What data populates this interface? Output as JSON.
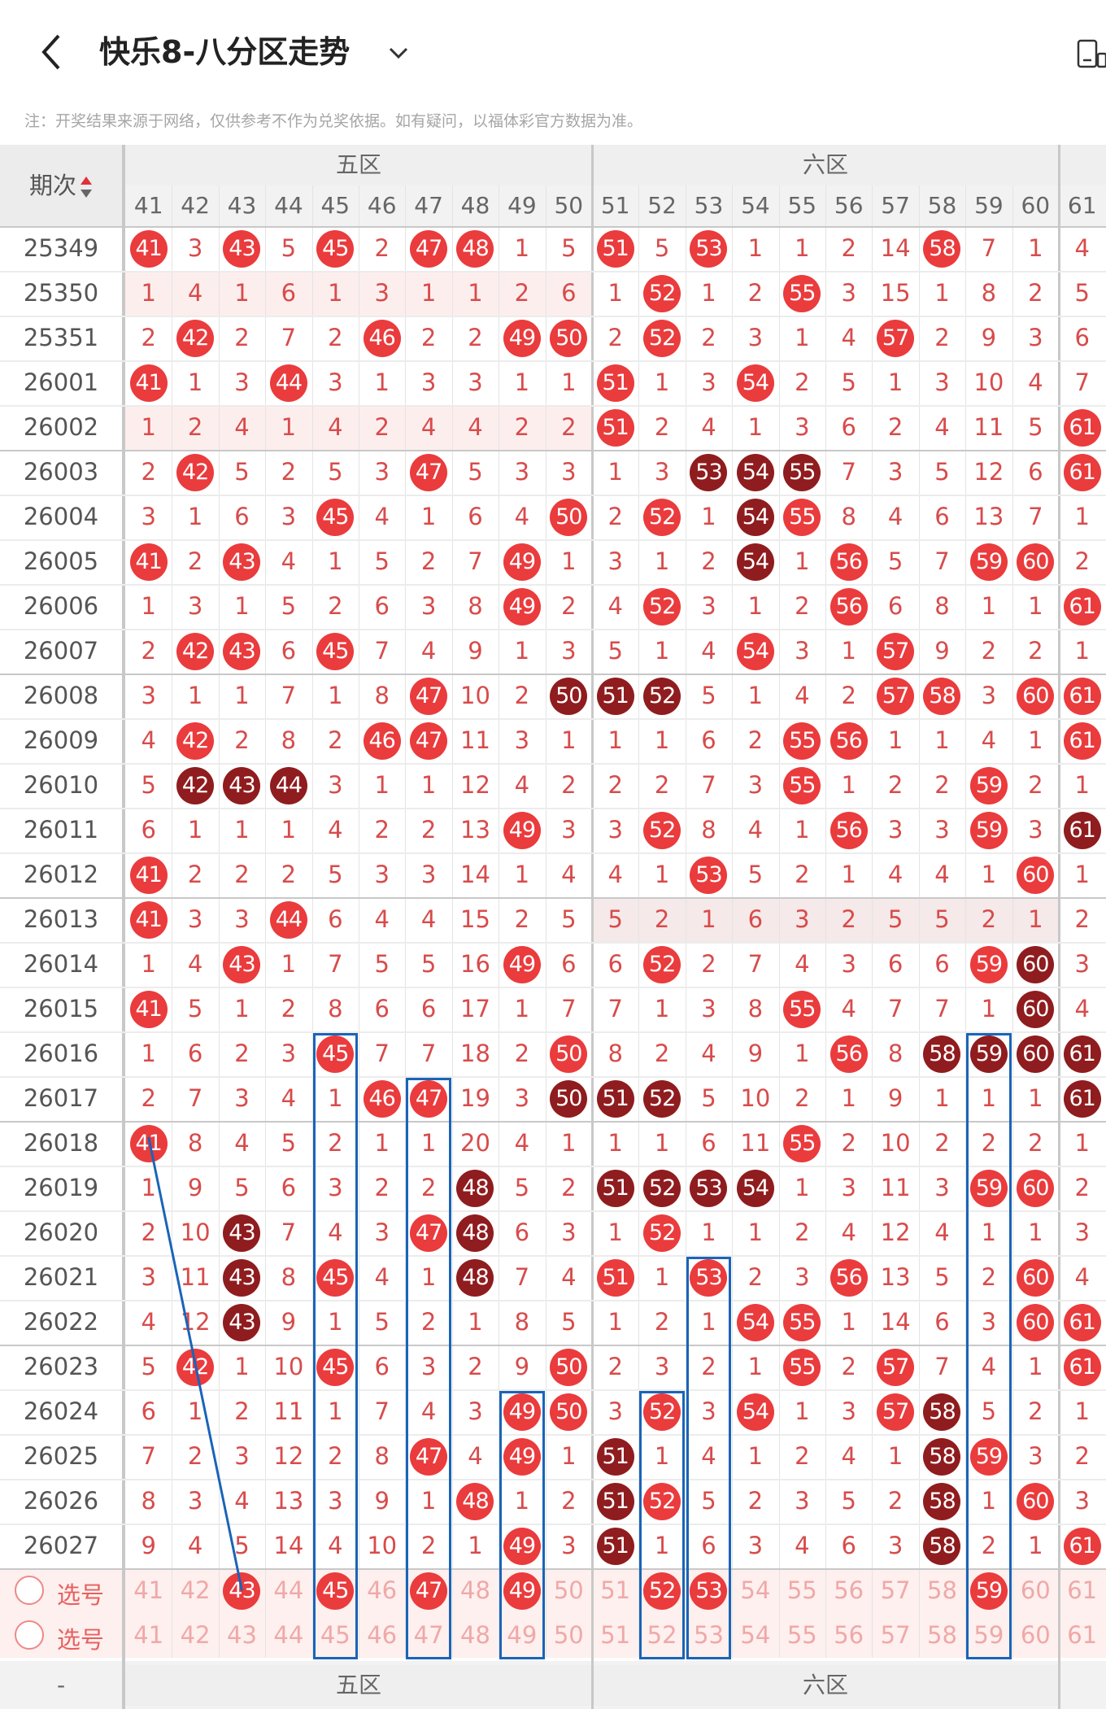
{
  "header": {
    "title": "快乐8-八分区走势"
  },
  "notice": "注：开奖结果来源于网络，仅供参考不作为兑奖依据。如有疑问，以福体彩官方数据为准。",
  "table": {
    "period_header": "期次",
    "zones": [
      "五区",
      "六区"
    ],
    "columns": [
      41,
      42,
      43,
      44,
      45,
      46,
      47,
      48,
      49,
      50,
      51,
      52,
      53,
      54,
      55,
      56,
      57,
      58,
      59,
      60,
      61
    ],
    "rows": [
      {
        "period": "25349",
        "cells": [
          "H41",
          "3",
          "H43",
          "5",
          "H45",
          "2",
          "H47",
          "H48",
          "1",
          "5",
          "H51",
          "5",
          "H53",
          "1",
          "1",
          "2",
          "14",
          "H58",
          "7",
          "1",
          "4"
        ]
      },
      {
        "period": "25350",
        "cells": [
          "1",
          "4",
          "1",
          "6",
          "1",
          "3",
          "1",
          "1",
          "2",
          "6",
          "1",
          "H52",
          "1",
          "2",
          "H55",
          "3",
          "15",
          "1",
          "8",
          "2",
          "5"
        ]
      },
      {
        "period": "25351",
        "cells": [
          "2",
          "H42",
          "2",
          "7",
          "2",
          "H46",
          "2",
          "2",
          "H49",
          "H50",
          "2",
          "H52",
          "2",
          "3",
          "1",
          "4",
          "H57",
          "2",
          "9",
          "3",
          "6"
        ]
      },
      {
        "period": "26001",
        "cells": [
          "H41",
          "1",
          "3",
          "H44",
          "3",
          "1",
          "3",
          "3",
          "1",
          "1",
          "H51",
          "1",
          "3",
          "H54",
          "2",
          "5",
          "1",
          "3",
          "10",
          "4",
          "7"
        ]
      },
      {
        "period": "26002",
        "cells": [
          "1",
          "2",
          "4",
          "1",
          "4",
          "2",
          "4",
          "4",
          "2",
          "2",
          "H51",
          "2",
          "4",
          "1",
          "3",
          "6",
          "2",
          "4",
          "11",
          "5",
          "H61"
        ]
      },
      {
        "period": "26003",
        "cells": [
          "2",
          "H42",
          "5",
          "2",
          "5",
          "3",
          "H47",
          "5",
          "3",
          "3",
          "1",
          "3",
          "D53",
          "D54",
          "D55",
          "7",
          "3",
          "5",
          "12",
          "6",
          "H61"
        ]
      },
      {
        "period": "26004",
        "cells": [
          "3",
          "1",
          "6",
          "3",
          "H45",
          "4",
          "1",
          "6",
          "4",
          "H50",
          "2",
          "H52",
          "1",
          "D54",
          "H55",
          "8",
          "4",
          "6",
          "13",
          "7",
          "1"
        ]
      },
      {
        "period": "26005",
        "cells": [
          "H41",
          "2",
          "H43",
          "4",
          "1",
          "5",
          "2",
          "7",
          "H49",
          "1",
          "3",
          "1",
          "2",
          "D54",
          "1",
          "H56",
          "5",
          "7",
          "H59",
          "H60",
          "2"
        ]
      },
      {
        "period": "26006",
        "cells": [
          "1",
          "3",
          "1",
          "5",
          "2",
          "6",
          "3",
          "8",
          "H49",
          "2",
          "4",
          "H52",
          "3",
          "1",
          "2",
          "H56",
          "6",
          "8",
          "1",
          "1",
          "H61"
        ]
      },
      {
        "period": "26007",
        "cells": [
          "2",
          "H42",
          "H43",
          "6",
          "H45",
          "7",
          "4",
          "9",
          "1",
          "3",
          "5",
          "1",
          "4",
          "H54",
          "3",
          "1",
          "H57",
          "9",
          "2",
          "2",
          "1"
        ]
      },
      {
        "period": "26008",
        "cells": [
          "3",
          "1",
          "1",
          "7",
          "1",
          "8",
          "H47",
          "10",
          "2",
          "D50",
          "D51",
          "D52",
          "5",
          "1",
          "4",
          "2",
          "H57",
          "H58",
          "3",
          "H60",
          "H61"
        ]
      },
      {
        "period": "26009",
        "cells": [
          "4",
          "H42",
          "2",
          "8",
          "2",
          "H46",
          "H47",
          "11",
          "3",
          "1",
          "1",
          "1",
          "6",
          "2",
          "H55",
          "H56",
          "1",
          "1",
          "4",
          "1",
          "H61"
        ]
      },
      {
        "period": "26010",
        "cells": [
          "5",
          "D42",
          "D43",
          "D44",
          "3",
          "1",
          "1",
          "12",
          "4",
          "2",
          "2",
          "2",
          "7",
          "3",
          "H55",
          "1",
          "2",
          "2",
          "H59",
          "2",
          "1"
        ]
      },
      {
        "period": "26011",
        "cells": [
          "6",
          "1",
          "1",
          "1",
          "4",
          "2",
          "2",
          "13",
          "H49",
          "3",
          "3",
          "H52",
          "8",
          "4",
          "1",
          "H56",
          "3",
          "3",
          "H59",
          "3",
          "D61"
        ]
      },
      {
        "period": "26012",
        "cells": [
          "H41",
          "2",
          "2",
          "2",
          "5",
          "3",
          "3",
          "14",
          "1",
          "4",
          "4",
          "1",
          "H53",
          "5",
          "2",
          "1",
          "4",
          "4",
          "1",
          "H60",
          "1"
        ]
      },
      {
        "period": "26013",
        "cells": [
          "H41",
          "3",
          "3",
          "H44",
          "6",
          "4",
          "4",
          "15",
          "2",
          "5",
          "5",
          "2",
          "1",
          "6",
          "3",
          "2",
          "5",
          "5",
          "2",
          "1",
          "2"
        ]
      },
      {
        "period": "26014",
        "cells": [
          "1",
          "4",
          "H43",
          "1",
          "7",
          "5",
          "5",
          "16",
          "H49",
          "6",
          "6",
          "H52",
          "2",
          "7",
          "4",
          "3",
          "6",
          "6",
          "H59",
          "D60",
          "3"
        ]
      },
      {
        "period": "26015",
        "cells": [
          "H41",
          "5",
          "1",
          "2",
          "8",
          "6",
          "6",
          "17",
          "1",
          "7",
          "7",
          "1",
          "3",
          "8",
          "H55",
          "4",
          "7",
          "7",
          "1",
          "D60",
          "4"
        ]
      },
      {
        "period": "26016",
        "cells": [
          "1",
          "6",
          "2",
          "3",
          "H45",
          "7",
          "7",
          "18",
          "2",
          "H50",
          "8",
          "2",
          "4",
          "9",
          "1",
          "H56",
          "8",
          "D58",
          "D59",
          "D60",
          "D61"
        ]
      },
      {
        "period": "26017",
        "cells": [
          "2",
          "7",
          "3",
          "4",
          "1",
          "H46",
          "H47",
          "19",
          "3",
          "D50",
          "D51",
          "D52",
          "5",
          "10",
          "2",
          "1",
          "9",
          "1",
          "1",
          "1",
          "D61"
        ]
      },
      {
        "period": "26018",
        "cells": [
          "H41",
          "8",
          "4",
          "5",
          "2",
          "1",
          "1",
          "20",
          "4",
          "1",
          "1",
          "1",
          "6",
          "11",
          "H55",
          "2",
          "10",
          "2",
          "2",
          "2",
          "1"
        ]
      },
      {
        "period": "26019",
        "cells": [
          "1",
          "9",
          "5",
          "6",
          "3",
          "2",
          "2",
          "D48",
          "5",
          "2",
          "D51",
          "D52",
          "D53",
          "D54",
          "1",
          "3",
          "11",
          "3",
          "H59",
          "H60",
          "2"
        ]
      },
      {
        "period": "26020",
        "cells": [
          "2",
          "10",
          "D43",
          "7",
          "4",
          "3",
          "H47",
          "D48",
          "6",
          "3",
          "1",
          "H52",
          "1",
          "1",
          "2",
          "4",
          "12",
          "4",
          "1",
          "1",
          "3"
        ]
      },
      {
        "period": "26021",
        "cells": [
          "3",
          "11",
          "D43",
          "8",
          "H45",
          "4",
          "1",
          "D48",
          "7",
          "4",
          "H51",
          "1",
          "H53",
          "2",
          "3",
          "H56",
          "13",
          "5",
          "2",
          "H60",
          "4"
        ]
      },
      {
        "period": "26022",
        "cells": [
          "4",
          "12",
          "D43",
          "9",
          "1",
          "5",
          "2",
          "1",
          "8",
          "5",
          "1",
          "2",
          "1",
          "H54",
          "H55",
          "1",
          "14",
          "6",
          "3",
          "H60",
          "H61"
        ]
      },
      {
        "period": "26023",
        "cells": [
          "5",
          "H42",
          "1",
          "10",
          "H45",
          "6",
          "3",
          "2",
          "9",
          "H50",
          "2",
          "3",
          "2",
          "1",
          "H55",
          "2",
          "H57",
          "7",
          "4",
          "1",
          "H61"
        ]
      },
      {
        "period": "26024",
        "cells": [
          "6",
          "1",
          "2",
          "11",
          "1",
          "7",
          "4",
          "3",
          "H49",
          "H50",
          "3",
          "H52",
          "3",
          "H54",
          "1",
          "3",
          "H57",
          "D58",
          "5",
          "2",
          "1"
        ]
      },
      {
        "period": "26025",
        "cells": [
          "7",
          "2",
          "3",
          "12",
          "2",
          "8",
          "H47",
          "4",
          "H49",
          "1",
          "D51",
          "1",
          "4",
          "1",
          "2",
          "4",
          "1",
          "D58",
          "H59",
          "3",
          "2"
        ]
      },
      {
        "period": "26026",
        "cells": [
          "8",
          "3",
          "4",
          "13",
          "3",
          "9",
          "1",
          "H48",
          "1",
          "2",
          "D51",
          "H52",
          "5",
          "2",
          "3",
          "5",
          "2",
          "D58",
          "1",
          "H60",
          "3"
        ]
      },
      {
        "period": "26027",
        "cells": [
          "9",
          "4",
          "5",
          "14",
          "4",
          "10",
          "2",
          "1",
          "H49",
          "3",
          "D51",
          "1",
          "6",
          "3",
          "4",
          "6",
          "3",
          "D58",
          "2",
          "1",
          "H61"
        ]
      }
    ],
    "select_label": "选号",
    "select_rows": [
      {
        "label": "选号",
        "picked": [
          43,
          45,
          47,
          49,
          52,
          53,
          59
        ]
      },
      {
        "label": "选号",
        "picked": []
      }
    ],
    "footer_zones": [
      "五区",
      "六区"
    ],
    "footer_left": "-"
  },
  "colors": {
    "hot": "#ea3b3d",
    "dark": "#8f1c1e",
    "box": "#1a64b8",
    "miss_text": "#d84b4b"
  },
  "icons": [
    "back-arrow-icon",
    "chevron-down-icon",
    "device-icon",
    "sort-arrows-icon",
    "radio-circle-icon"
  ]
}
